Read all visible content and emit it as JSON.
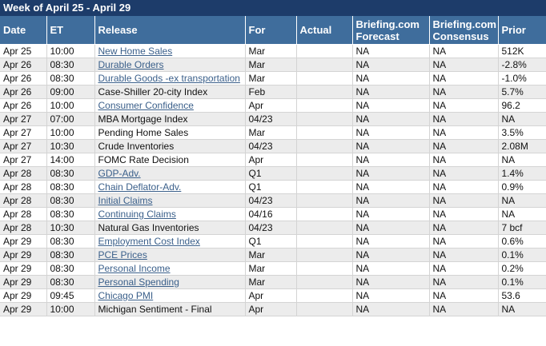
{
  "header": {
    "title": "Week of April 25 - April 29"
  },
  "table": {
    "columns": [
      "Date",
      "ET",
      "Release",
      "For",
      "Actual",
      "Briefing.com Forecast",
      "Briefing.com Consensus",
      "Prior"
    ],
    "rows": [
      {
        "cells": [
          "Apr 25",
          "10:00",
          "New Home Sales",
          "Mar",
          "",
          "NA",
          "NA",
          "512K"
        ],
        "link": true
      },
      {
        "cells": [
          "Apr 26",
          "08:30",
          "Durable Orders",
          "Mar",
          "",
          "NA",
          "NA",
          "-2.8%"
        ],
        "link": true
      },
      {
        "cells": [
          "Apr 26",
          "08:30",
          "Durable Goods -ex transportation",
          "Mar",
          "",
          "NA",
          "NA",
          "-1.0%"
        ],
        "link": true
      },
      {
        "cells": [
          "Apr 26",
          "09:00",
          "Case-Shiller 20-city Index",
          "Feb",
          "",
          "NA",
          "NA",
          "5.7%"
        ],
        "link": false
      },
      {
        "cells": [
          "Apr 26",
          "10:00",
          "Consumer Confidence",
          "Apr",
          "",
          "NA",
          "NA",
          "96.2"
        ],
        "link": true
      },
      {
        "cells": [
          "Apr 27",
          "07:00",
          "MBA Mortgage Index",
          "04/23",
          "",
          "NA",
          "NA",
          "NA"
        ],
        "link": false
      },
      {
        "cells": [
          "Apr 27",
          "10:00",
          "Pending Home Sales",
          "Mar",
          "",
          "NA",
          "NA",
          "3.5%"
        ],
        "link": false
      },
      {
        "cells": [
          "Apr 27",
          "10:30",
          "Crude Inventories",
          "04/23",
          "",
          "NA",
          "NA",
          "2.08M"
        ],
        "link": false
      },
      {
        "cells": [
          "Apr 27",
          "14:00",
          "FOMC Rate Decision",
          "Apr",
          "",
          "NA",
          "NA",
          "NA"
        ],
        "link": false
      },
      {
        "cells": [
          "Apr 28",
          "08:30",
          "GDP-Adv.",
          "Q1",
          "",
          "NA",
          "NA",
          "1.4%"
        ],
        "link": true
      },
      {
        "cells": [
          "Apr 28",
          "08:30",
          "Chain Deflator-Adv.",
          "Q1",
          "",
          "NA",
          "NA",
          "0.9%"
        ],
        "link": true
      },
      {
        "cells": [
          "Apr 28",
          "08:30",
          "Initial Claims",
          "04/23",
          "",
          "NA",
          "NA",
          "NA"
        ],
        "link": true
      },
      {
        "cells": [
          "Apr 28",
          "08:30",
          "Continuing Claims",
          "04/16",
          "",
          "NA",
          "NA",
          "NA"
        ],
        "link": true
      },
      {
        "cells": [
          "Apr 28",
          "10:30",
          "Natural Gas Inventories",
          "04/23",
          "",
          "NA",
          "NA",
          "7 bcf"
        ],
        "link": false
      },
      {
        "cells": [
          "Apr 29",
          "08:30",
          "Employment Cost Index",
          "Q1",
          "",
          "NA",
          "NA",
          "0.6%"
        ],
        "link": true
      },
      {
        "cells": [
          "Apr 29",
          "08:30",
          "PCE Prices",
          "Mar",
          "",
          "NA",
          "NA",
          "0.1%"
        ],
        "link": true
      },
      {
        "cells": [
          "Apr 29",
          "08:30",
          "Personal Income",
          "Mar",
          "",
          "NA",
          "NA",
          "0.2%"
        ],
        "link": true
      },
      {
        "cells": [
          "Apr 29",
          "08:30",
          "Personal Spending",
          "Mar",
          "",
          "NA",
          "NA",
          "0.1%"
        ],
        "link": true
      },
      {
        "cells": [
          "Apr 29",
          "09:45",
          "Chicago PMI",
          "Apr",
          "",
          "NA",
          "NA",
          "53.6"
        ],
        "link": true
      },
      {
        "cells": [
          "Apr 29",
          "10:00",
          "Michigan Sentiment - Final",
          "Apr",
          "",
          "NA",
          "NA",
          "NA"
        ],
        "link": false
      }
    ]
  }
}
